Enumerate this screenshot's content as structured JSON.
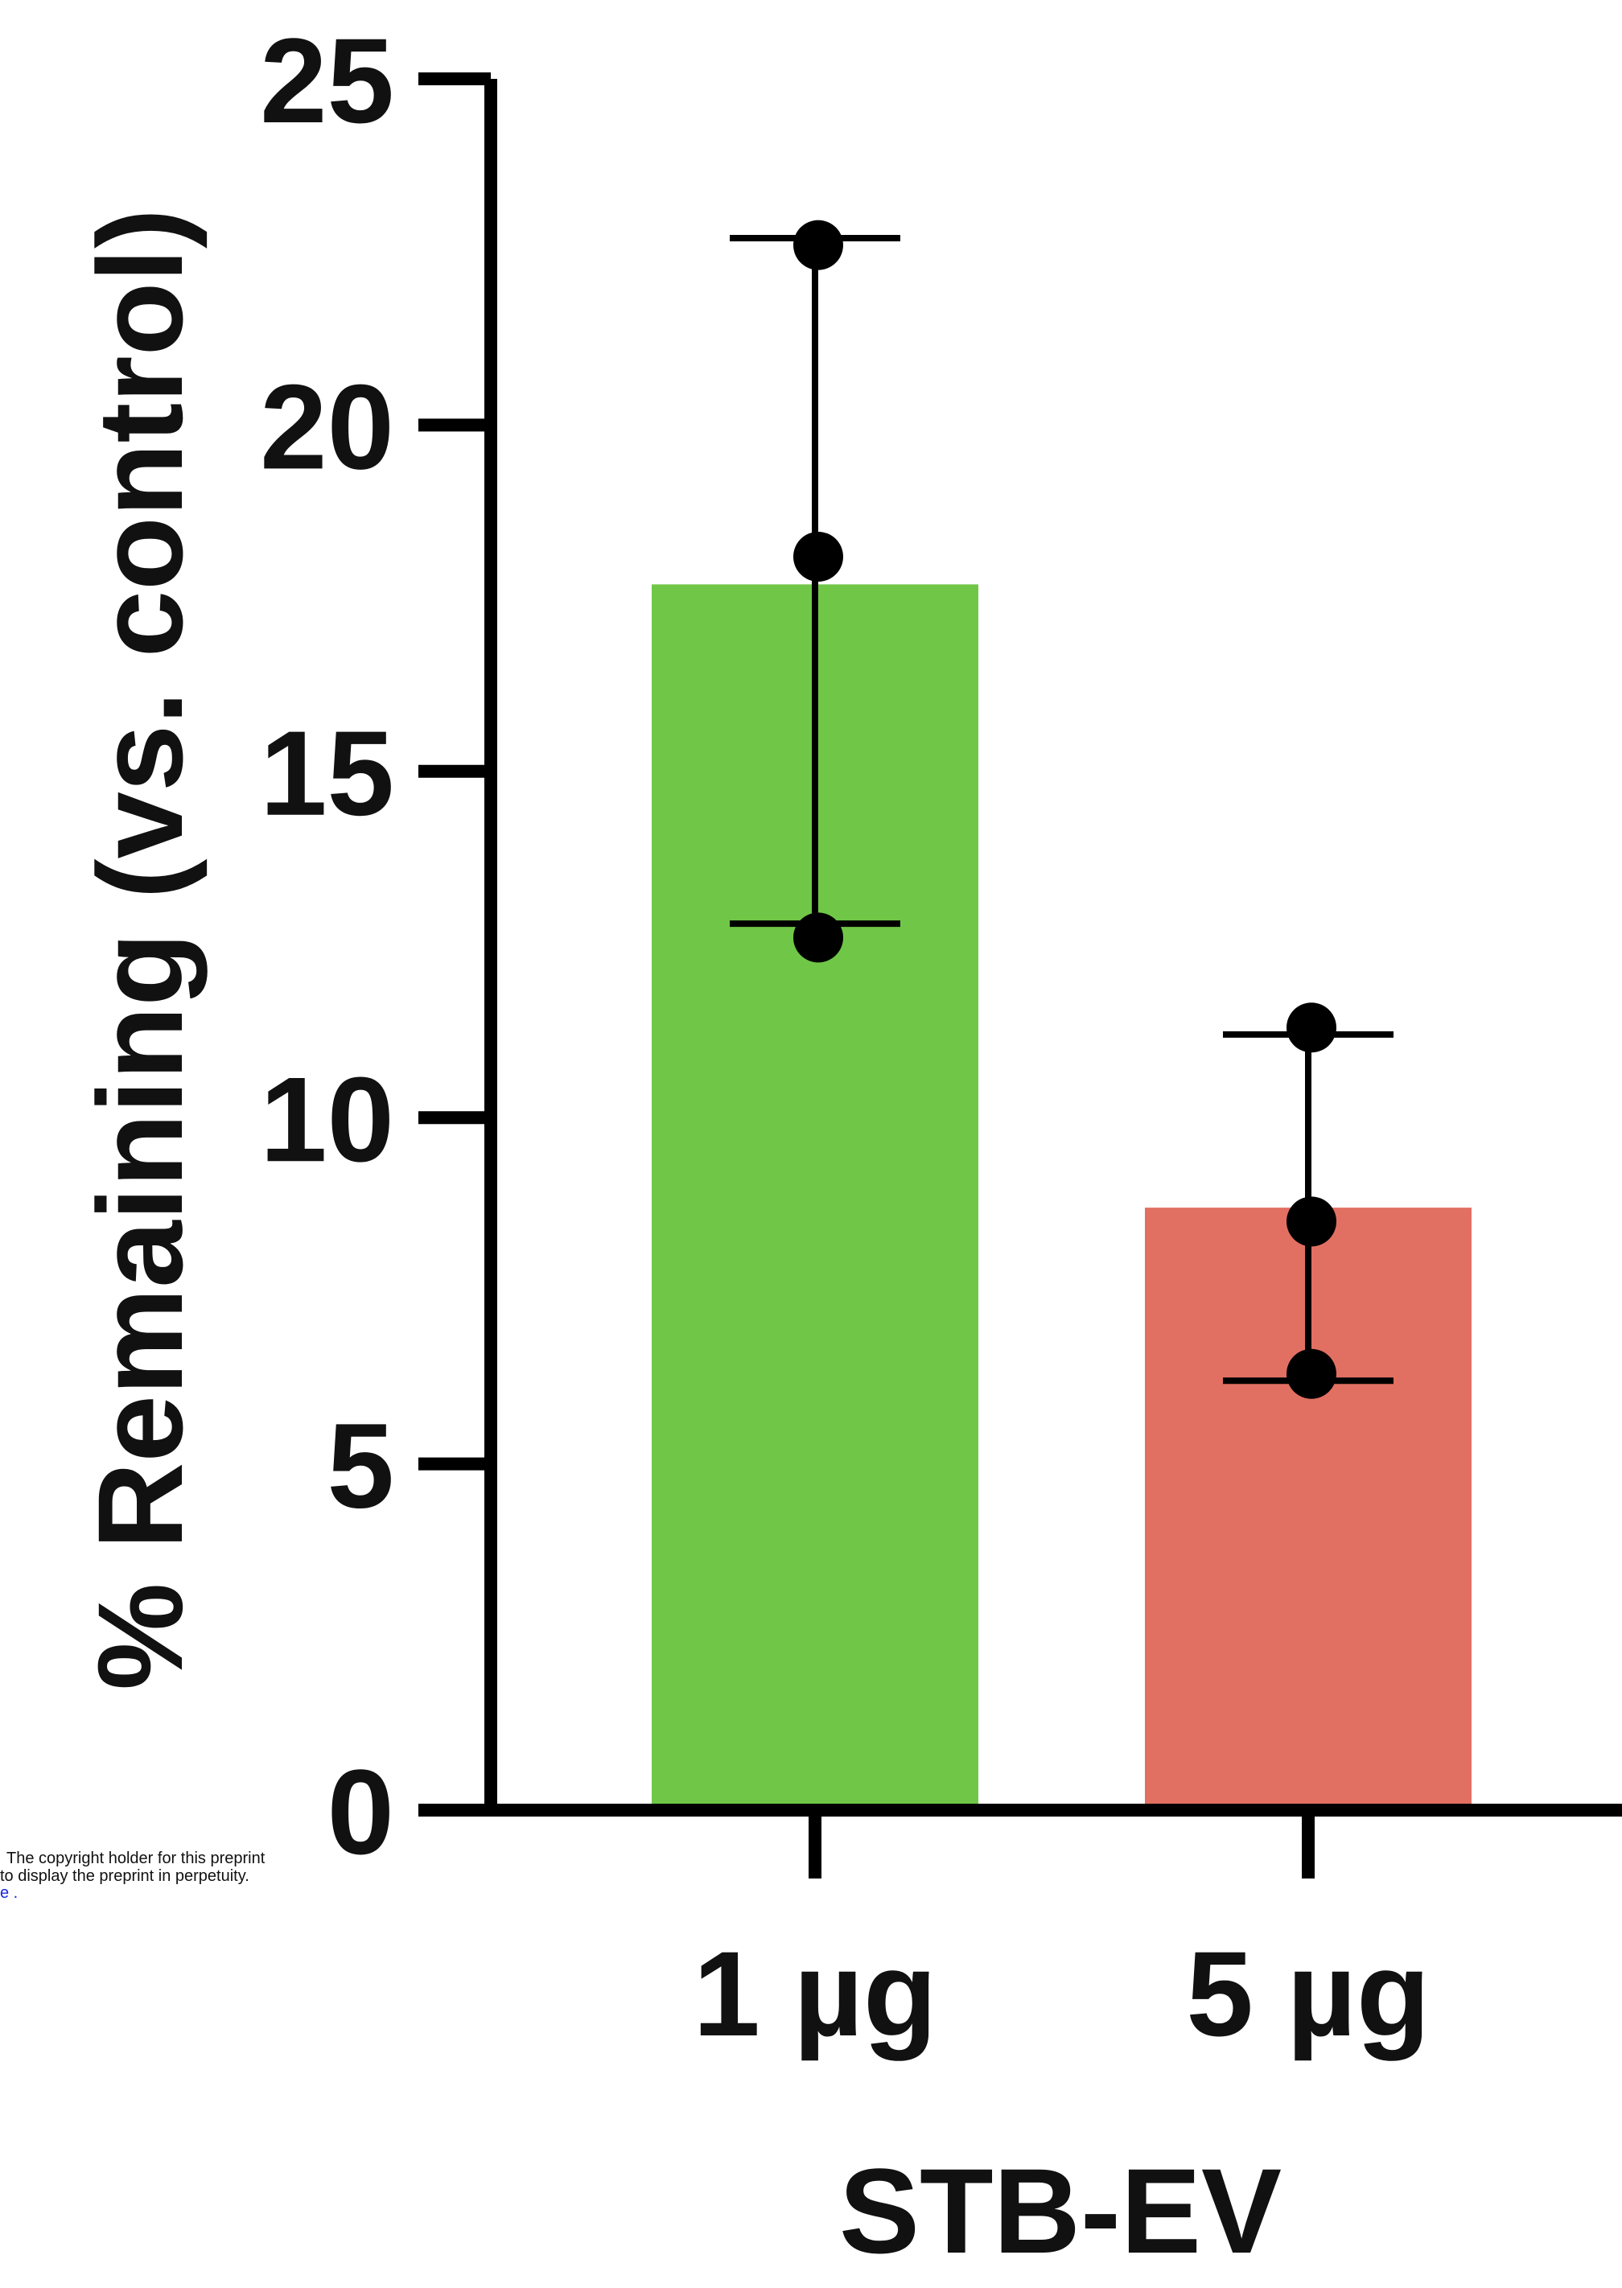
{
  "chart_data": {
    "type": "bar",
    "title": "",
    "xlabel": "STB-EV",
    "ylabel": "% Remaining (vs. control)",
    "ylim": [
      0,
      25
    ],
    "yticks": [
      0,
      5,
      10,
      15,
      20,
      25
    ],
    "grid": false,
    "categories": [
      "1 µg",
      "5 µg"
    ],
    "values": [
      17.7,
      8.7
    ],
    "error": [
      {
        "low": 12.8,
        "high": 22.7
      },
      {
        "low": 6.2,
        "high": 11.2
      }
    ],
    "points": [
      [
        22.6,
        18.1,
        12.6
      ],
      [
        11.3,
        8.5,
        6.3
      ]
    ],
    "colors": [
      "#70c747",
      "#e27062"
    ]
  },
  "stamp": {
    "line1": "The copyright holder for this preprint",
    "line2": "to display the preprint in perpetuity.",
    "line3": "e ."
  }
}
